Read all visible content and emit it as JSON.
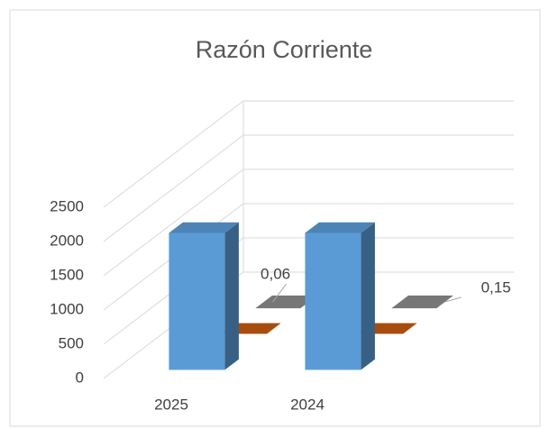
{
  "chart_data": {
    "type": "bar3d",
    "title": "Razón Corriente",
    "categories": [
      "2025",
      "2024"
    ],
    "series": [
      {
        "color": "#5b9bd5",
        "values": [
          2000,
          2000
        ]
      },
      {
        "color": "#c55a11",
        "values": [
          0,
          0
        ]
      },
      {
        "color": "#8c8c8c",
        "values": [
          0.06,
          0.15
        ],
        "value_labels": [
          "0,06",
          "0,15"
        ]
      }
    ],
    "ylim": [
      0,
      2500
    ],
    "yticks": [
      0,
      500,
      1000,
      1500,
      2000,
      2500
    ],
    "grid": true
  }
}
